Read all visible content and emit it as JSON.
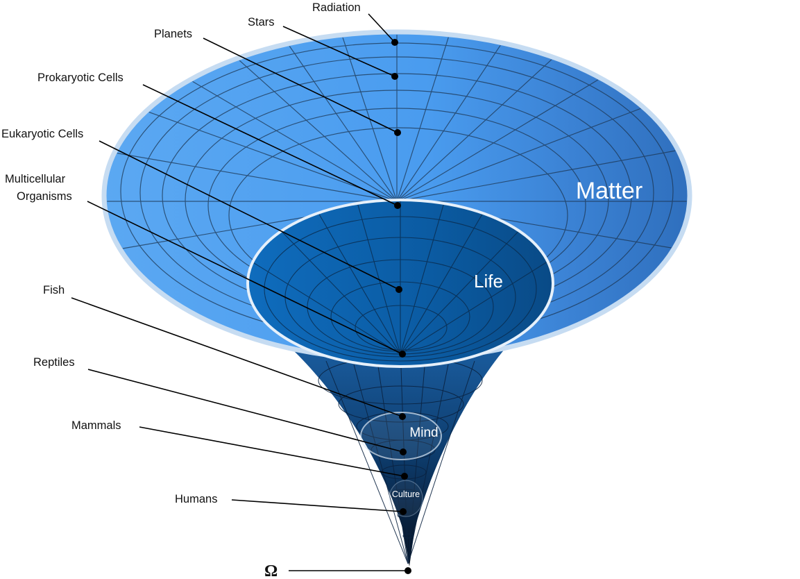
{
  "diagram": {
    "regions": {
      "matter": "Matter",
      "life": "Life",
      "mind": "Mind",
      "culture": "Culture"
    },
    "stages": [
      {
        "key": "radiation",
        "label": "Radiation"
      },
      {
        "key": "stars",
        "label": "Stars"
      },
      {
        "key": "planets",
        "label": "Planets"
      },
      {
        "key": "prokaryotic",
        "label": "Prokaryotic Cells"
      },
      {
        "key": "eukaryotic",
        "label": "Eukaryotic Cells"
      },
      {
        "key": "multicellular",
        "label_line1": "Multicellular",
        "label_line2": "Organisms"
      },
      {
        "key": "fish",
        "label": "Fish"
      },
      {
        "key": "reptiles",
        "label": "Reptiles"
      },
      {
        "key": "mammals",
        "label": "Mammals"
      },
      {
        "key": "humans",
        "label": "Humans"
      },
      {
        "key": "omega",
        "label": "Ω"
      }
    ],
    "colors": {
      "matter": "#4f9ff0",
      "life": "#0d5fa8",
      "throat": "#0b3f78",
      "grid": "#1d3652",
      "rim": "#c6dcf2"
    }
  }
}
